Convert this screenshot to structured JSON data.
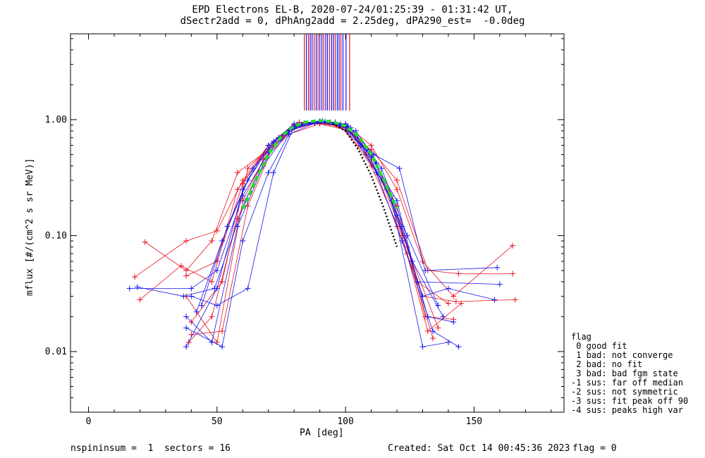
{
  "title_line1": "EPD Electrons EL-B, 2020-07-24/01:25:39 - 01:31:42 UT,",
  "title_line2": "dSectr2add = 0, dPhAng2add = 2.25deg, dPA290_est=  -0.0deg",
  "footer_left": "nspininsum =  1  sectors = 16",
  "footer_created": "Created: Sat Oct 14 00:45:36 2023",
  "footer_flag": "flag = 0",
  "legend": {
    "title": "flag",
    "items": [
      " 0 good fit",
      " 1 bad: not converge",
      " 2 bad: no fit",
      " 3 bad: bad fgm state",
      "-1 sus: far off median",
      "-2 sus: not symmetric",
      "-3 sus: fit peak off 90",
      "-4 sus: peaks high var"
    ]
  },
  "colors": {
    "red": "#e8141e",
    "blue": "#1414f0",
    "green": "#22dd22",
    "black": "#000000"
  },
  "chart_data": {
    "type": "line",
    "xlabel": "PA [deg]",
    "ylabel": "mflux [#/(cm^2 s sr MeV)]",
    "xlim": [
      -7,
      185
    ],
    "ylim": [
      0.003,
      5.5
    ],
    "ylog": true,
    "xticks": [
      0,
      50,
      100,
      150
    ],
    "xtick_labels": [
      "0",
      "50",
      "100",
      "150"
    ],
    "yticks": [
      0.01,
      0.1,
      1.0
    ],
    "ytick_labels": [
      "0.01",
      "0.10",
      "1.00"
    ],
    "series": [
      {
        "color": "red",
        "x": [
          22,
          38,
          48,
          58,
          70,
          80,
          90,
          100,
          110,
          120,
          132,
          144,
          165
        ],
        "y": [
          0.088,
          0.05,
          0.09,
          0.35,
          0.55,
          0.85,
          0.95,
          0.85,
          0.55,
          0.3,
          0.05,
          0.047,
          0.047
        ]
      },
      {
        "color": "red",
        "x": [
          18,
          38,
          50,
          60,
          70,
          80,
          90,
          100,
          110,
          120,
          130,
          142,
          165
        ],
        "y": [
          0.044,
          0.09,
          0.11,
          0.3,
          0.6,
          0.9,
          0.96,
          0.9,
          0.6,
          0.25,
          0.06,
          0.03,
          0.082
        ]
      },
      {
        "color": "red",
        "x": [
          20,
          36,
          48,
          58,
          68,
          78,
          88,
          98,
          108,
          118,
          128,
          140
        ],
        "y": [
          0.028,
          0.055,
          0.04,
          0.25,
          0.5,
          0.8,
          0.93,
          0.88,
          0.5,
          0.22,
          0.04,
          0.026
        ]
      },
      {
        "color": "red",
        "x": [
          38,
          50,
          60,
          70,
          80,
          90,
          100,
          110,
          120,
          130,
          143,
          166
        ],
        "y": [
          0.03,
          0.012,
          0.2,
          0.55,
          0.9,
          0.97,
          0.9,
          0.45,
          0.12,
          0.03,
          0.027,
          0.028
        ]
      },
      {
        "color": "red",
        "x": [
          39,
          48,
          58,
          68,
          78,
          90,
          100,
          110,
          122,
          132,
          145
        ],
        "y": [
          0.012,
          0.02,
          0.14,
          0.45,
          0.75,
          0.92,
          0.82,
          0.4,
          0.1,
          0.015,
          0.026
        ]
      },
      {
        "color": "red",
        "x": [
          40,
          52,
          62,
          72,
          82,
          92,
          102,
          112,
          124,
          134
        ],
        "y": [
          0.014,
          0.015,
          0.18,
          0.6,
          0.95,
          0.95,
          0.78,
          0.35,
          0.07,
          0.013
        ]
      },
      {
        "color": "red",
        "x": [
          38,
          50,
          60,
          70,
          80,
          90,
          100,
          110,
          120,
          131,
          142
        ],
        "y": [
          0.045,
          0.06,
          0.28,
          0.6,
          0.88,
          0.93,
          0.86,
          0.5,
          0.18,
          0.02,
          0.019
        ]
      },
      {
        "color": "red",
        "x": [
          40,
          52,
          62,
          74,
          84,
          94,
          104,
          114,
          124,
          136
        ],
        "y": [
          0.018,
          0.04,
          0.38,
          0.7,
          0.93,
          0.95,
          0.72,
          0.3,
          0.08,
          0.016
        ]
      },
      {
        "color": "blue",
        "x": [
          16,
          40,
          50,
          60,
          70,
          80,
          90,
          100,
          110,
          120,
          128,
          160
        ],
        "y": [
          0.035,
          0.035,
          0.05,
          0.22,
          0.52,
          0.85,
          0.96,
          0.86,
          0.48,
          0.2,
          0.04,
          0.038
        ]
      },
      {
        "color": "blue",
        "x": [
          19,
          37,
          49,
          61,
          71,
          81,
          91,
          101,
          111,
          121,
          131,
          159
        ],
        "y": [
          0.036,
          0.03,
          0.035,
          0.2,
          0.55,
          0.9,
          0.97,
          0.88,
          0.5,
          0.38,
          0.05,
          0.053
        ]
      },
      {
        "color": "blue",
        "x": [
          38,
          48,
          58,
          68,
          78,
          88,
          98,
          108,
          118,
          130,
          140
        ],
        "y": [
          0.02,
          0.012,
          0.12,
          0.4,
          0.8,
          0.95,
          0.92,
          0.55,
          0.2,
          0.011,
          0.012
        ]
      },
      {
        "color": "blue",
        "x": [
          38,
          50,
          60,
          70,
          80,
          90,
          100,
          110,
          120,
          130,
          140,
          158
        ],
        "y": [
          0.011,
          0.035,
          0.25,
          0.6,
          0.92,
          0.97,
          0.9,
          0.5,
          0.15,
          0.03,
          0.035,
          0.028
        ]
      },
      {
        "color": "blue",
        "x": [
          42,
          52,
          62,
          72,
          82,
          92,
          102,
          112,
          122,
          132,
          142
        ],
        "y": [
          0.022,
          0.09,
          0.3,
          0.65,
          0.9,
          0.96,
          0.85,
          0.42,
          0.12,
          0.02,
          0.018
        ]
      },
      {
        "color": "blue",
        "x": [
          40,
          50,
          62,
          72,
          80,
          92,
          100,
          112,
          122,
          134,
          144
        ],
        "y": [
          0.03,
          0.025,
          0.035,
          0.35,
          0.87,
          0.95,
          0.92,
          0.35,
          0.09,
          0.015,
          0.011
        ]
      },
      {
        "color": "blue",
        "x": [
          38,
          52,
          60,
          70,
          78,
          88,
          96,
          106,
          116,
          126,
          138
        ],
        "y": [
          0.016,
          0.011,
          0.09,
          0.35,
          0.75,
          0.93,
          0.95,
          0.6,
          0.25,
          0.06,
          0.02
        ]
      },
      {
        "color": "blue",
        "x": [
          44,
          54,
          64,
          74,
          84,
          94,
          104,
          114,
          124,
          136
        ],
        "y": [
          0.025,
          0.12,
          0.38,
          0.7,
          0.93,
          0.94,
          0.8,
          0.38,
          0.1,
          0.025
        ]
      }
    ],
    "fit_curve": {
      "color": "green",
      "style": "dashed",
      "x": [
        60,
        65,
        70,
        75,
        80,
        85,
        90,
        95,
        100,
        105,
        110,
        115,
        120
      ],
      "y": [
        0.17,
        0.3,
        0.5,
        0.72,
        0.88,
        0.96,
        0.98,
        0.96,
        0.88,
        0.72,
        0.5,
        0.3,
        0.17
      ]
    },
    "fit_curve_black": {
      "color": "black",
      "style": "dotted",
      "x": [
        95,
        100,
        105,
        110,
        115,
        120
      ],
      "y": [
        0.92,
        0.8,
        0.55,
        0.33,
        0.17,
        0.08
      ]
    },
    "vertical_lines": [
      {
        "color": "red",
        "x": 84.0
      },
      {
        "color": "blue",
        "x": 84.8
      },
      {
        "color": "red",
        "x": 85.6
      },
      {
        "color": "blue",
        "x": 86.3
      },
      {
        "color": "blue",
        "x": 87.0
      },
      {
        "color": "red",
        "x": 87.8
      },
      {
        "color": "blue",
        "x": 88.6
      },
      {
        "color": "red",
        "x": 89.3
      },
      {
        "color": "blue",
        "x": 90.0
      },
      {
        "color": "blue",
        "x": 90.8
      },
      {
        "color": "red",
        "x": 91.5
      },
      {
        "color": "blue",
        "x": 92.3
      },
      {
        "color": "blue",
        "x": 93.0
      },
      {
        "color": "red",
        "x": 93.8
      },
      {
        "color": "blue",
        "x": 94.6
      },
      {
        "color": "blue",
        "x": 95.3
      },
      {
        "color": "red",
        "x": 96.0
      },
      {
        "color": "blue",
        "x": 96.8
      },
      {
        "color": "blue",
        "x": 97.5
      },
      {
        "color": "red",
        "x": 98.2
      },
      {
        "color": "blue",
        "x": 99.0
      },
      {
        "color": "blue",
        "x": 100.2
      },
      {
        "color": "red",
        "x": 101.6
      }
    ],
    "vertical_line_ylim": [
      1.2,
      5.5
    ]
  }
}
